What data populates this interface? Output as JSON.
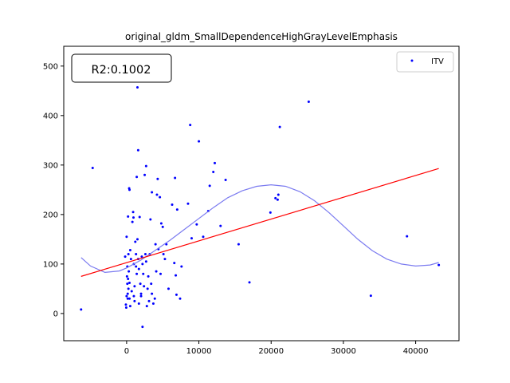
{
  "chart_data": {
    "type": "scatter",
    "title": "original_gldm_SmallDependenceHighGrayLevelEmphasis",
    "xlabel": "",
    "ylabel": "",
    "xlim": [
      -8700,
      46000
    ],
    "ylim": [
      -55,
      540
    ],
    "x_ticks": [
      0,
      10000,
      20000,
      30000,
      40000
    ],
    "x_tick_labels": [
      "0",
      "10000",
      "20000",
      "30000",
      "40000"
    ],
    "y_ticks": [
      0,
      100,
      200,
      300,
      400,
      500
    ],
    "y_tick_labels": [
      "0",
      "100",
      "200",
      "300",
      "400",
      "500"
    ],
    "annotation": "R2:0.1002",
    "legend": {
      "placement": "upper right",
      "entries": [
        "ITV"
      ]
    },
    "grid": false,
    "colors": {
      "points": "#0000ff",
      "fit_line": "#ff0000",
      "smooth_curve": "#7b7bf0"
    },
    "series": [
      {
        "name": "ITV",
        "style": "points",
        "points": [
          [
            -6300,
            8
          ],
          [
            -4700,
            294
          ],
          [
            -200,
            115
          ],
          [
            -100,
            18
          ],
          [
            -50,
            12
          ],
          [
            0,
            155
          ],
          [
            0,
            35
          ],
          [
            50,
            75
          ],
          [
            100,
            60
          ],
          [
            150,
            40
          ],
          [
            100,
            95
          ],
          [
            150,
            30
          ],
          [
            200,
            196
          ],
          [
            200,
            70
          ],
          [
            250,
            120
          ],
          [
            250,
            50
          ],
          [
            300,
            85
          ],
          [
            350,
            253
          ],
          [
            400,
            250
          ],
          [
            400,
            62
          ],
          [
            400,
            30
          ],
          [
            500,
            15
          ],
          [
            500,
            128
          ],
          [
            600,
            110
          ],
          [
            700,
            45
          ],
          [
            800,
            185
          ],
          [
            900,
            205
          ],
          [
            950,
            194
          ],
          [
            1000,
            100
          ],
          [
            1000,
            35
          ],
          [
            1100,
            55
          ],
          [
            1100,
            25
          ],
          [
            1200,
            145
          ],
          [
            1300,
            120
          ],
          [
            1300,
            95
          ],
          [
            1400,
            276
          ],
          [
            1400,
            80
          ],
          [
            1500,
            457
          ],
          [
            1500,
            150
          ],
          [
            1600,
            330
          ],
          [
            1600,
            110
          ],
          [
            1700,
            90
          ],
          [
            1700,
            20
          ],
          [
            1800,
            195
          ],
          [
            1900,
            60
          ],
          [
            2000,
            40
          ],
          [
            2000,
            35
          ],
          [
            2100,
            115
          ],
          [
            2200,
            -27
          ],
          [
            2200,
            100
          ],
          [
            2300,
            80
          ],
          [
            2400,
            55
          ],
          [
            2500,
            280
          ],
          [
            2600,
            120
          ],
          [
            2700,
            298
          ],
          [
            2700,
            105
          ],
          [
            2800,
            15
          ],
          [
            2900,
            50
          ],
          [
            3000,
            75
          ],
          [
            3100,
            25
          ],
          [
            3200,
            120
          ],
          [
            3300,
            190
          ],
          [
            3400,
            60
          ],
          [
            3500,
            245
          ],
          [
            3500,
            40
          ],
          [
            3700,
            20
          ],
          [
            3900,
            30
          ],
          [
            4000,
            140
          ],
          [
            4100,
            85
          ],
          [
            4200,
            240
          ],
          [
            4300,
            272
          ],
          [
            4400,
            130
          ],
          [
            4600,
            235
          ],
          [
            4700,
            80
          ],
          [
            4800,
            182
          ],
          [
            5000,
            175
          ],
          [
            5100,
            120
          ],
          [
            5300,
            110
          ],
          [
            5500,
            140
          ],
          [
            5800,
            50
          ],
          [
            6300,
            220
          ],
          [
            6600,
            102
          ],
          [
            6700,
            274
          ],
          [
            6800,
            77
          ],
          [
            6900,
            38
          ],
          [
            7000,
            210
          ],
          [
            7400,
            30
          ],
          [
            7600,
            95
          ],
          [
            8500,
            222
          ],
          [
            8800,
            381
          ],
          [
            9000,
            152
          ],
          [
            9700,
            180
          ],
          [
            10000,
            348
          ],
          [
            10600,
            155
          ],
          [
            11300,
            207
          ],
          [
            11500,
            258
          ],
          [
            12000,
            286
          ],
          [
            12200,
            304
          ],
          [
            13000,
            177
          ],
          [
            13700,
            270
          ],
          [
            15500,
            140
          ],
          [
            17000,
            63
          ],
          [
            19900,
            204
          ],
          [
            20600,
            233
          ],
          [
            20900,
            230
          ],
          [
            21000,
            240
          ],
          [
            21200,
            377
          ],
          [
            25200,
            428
          ],
          [
            33800,
            36
          ],
          [
            38800,
            156
          ],
          [
            43200,
            98
          ]
        ]
      },
      {
        "name": "",
        "style": "line",
        "points": [
          [
            -6300,
            75
          ],
          [
            43200,
            293
          ]
        ]
      },
      {
        "name": "",
        "style": "curve",
        "points": [
          [
            -6300,
            113
          ],
          [
            -5000,
            96
          ],
          [
            -3000,
            83
          ],
          [
            -1000,
            86
          ],
          [
            0,
            92
          ],
          [
            2000,
            108
          ],
          [
            4000,
            128
          ],
          [
            6000,
            148
          ],
          [
            8000,
            170
          ],
          [
            10000,
            192
          ],
          [
            12000,
            214
          ],
          [
            14000,
            234
          ],
          [
            16000,
            248
          ],
          [
            18000,
            257
          ],
          [
            20000,
            260
          ],
          [
            22000,
            257
          ],
          [
            24000,
            246
          ],
          [
            26000,
            228
          ],
          [
            28000,
            204
          ],
          [
            30000,
            177
          ],
          [
            32000,
            150
          ],
          [
            34000,
            127
          ],
          [
            36000,
            110
          ],
          [
            38000,
            100
          ],
          [
            40000,
            96
          ],
          [
            42000,
            98
          ],
          [
            43200,
            103
          ]
        ]
      }
    ]
  }
}
